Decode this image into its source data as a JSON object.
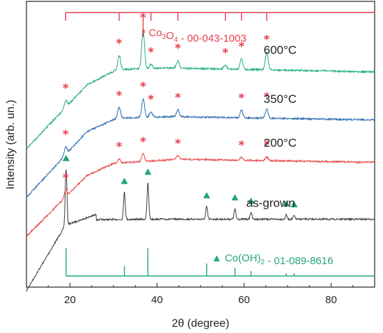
{
  "chart_data": {
    "type": "line",
    "xlabel": "2θ (degree)",
    "ylabel": "Intensity (arb. un.)",
    "xlim": [
      10,
      90
    ],
    "xticks": [
      "20",
      "40",
      "60",
      "80"
    ],
    "grid": false,
    "colors": {
      "as_grown": "#3a3a3a",
      "c200": "#e84a4a",
      "c350": "#2f6db3",
      "c600": "#1fae7a",
      "co3o4_ref": "#e83c4e",
      "cooh_ref": "#22a57a"
    },
    "series": [
      {
        "name": "as-grown",
        "peaks": [
          {
            "x": 19.1,
            "h": 80
          },
          {
            "x": 32.5,
            "h": 39
          },
          {
            "x": 37.9,
            "h": 52
          },
          {
            "x": 51.4,
            "h": 18
          },
          {
            "x": 57.9,
            "h": 15
          },
          {
            "x": 61.6,
            "h": 10
          },
          {
            "x": 69.7,
            "h": 6
          },
          {
            "x": 71.5,
            "h": 5
          }
        ],
        "marker": "triangle",
        "marker_positions": [
          19.1,
          32.5,
          37.9,
          51.4,
          57.9,
          61.6,
          69.7,
          71.5
        ]
      },
      {
        "name": "200°C",
        "peaks": [
          {
            "x": 19.0,
            "h": 10
          },
          {
            "x": 31.3,
            "h": 6
          },
          {
            "x": 36.8,
            "h": 11
          },
          {
            "x": 44.8,
            "h": 5
          },
          {
            "x": 59.4,
            "h": 4
          },
          {
            "x": 65.2,
            "h": 5
          }
        ],
        "marker": "star",
        "marker_positions": [
          19.0,
          31.3,
          36.8,
          44.8,
          59.4,
          65.2
        ]
      },
      {
        "name": "350°C",
        "peaks": [
          {
            "x": 19.0,
            "h": 12
          },
          {
            "x": 31.3,
            "h": 15
          },
          {
            "x": 36.8,
            "h": 27
          },
          {
            "x": 38.6,
            "h": 8
          },
          {
            "x": 44.8,
            "h": 9
          },
          {
            "x": 59.4,
            "h": 11
          },
          {
            "x": 65.2,
            "h": 13
          }
        ],
        "marker": "star",
        "marker_positions": [
          19.0,
          31.3,
          36.8,
          38.6,
          44.8,
          59.4,
          65.2
        ]
      },
      {
        "name": "600°C",
        "peaks": [
          {
            "x": 19.0,
            "h": 10
          },
          {
            "x": 31.3,
            "h": 20
          },
          {
            "x": 36.8,
            "h": 56
          },
          {
            "x": 38.6,
            "h": 6
          },
          {
            "x": 44.8,
            "h": 10
          },
          {
            "x": 55.7,
            "h": 6
          },
          {
            "x": 59.4,
            "h": 15
          },
          {
            "x": 65.2,
            "h": 26
          }
        ],
        "marker": "star",
        "marker_positions": [
          19.0,
          31.3,
          36.8,
          38.6,
          44.8,
          55.7,
          59.4,
          65.2
        ]
      }
    ],
    "reference_patterns": [
      {
        "name": "Co3O4 - 00-043-1003",
        "label_main": "Co",
        "label_sub1": "3",
        "label_mid": "O",
        "label_sub2": "4",
        "label_tail": " - 00-043-1003",
        "symbol": "*",
        "position": "top",
        "lines": [
          {
            "x": 19.0,
            "h": 12
          },
          {
            "x": 31.3,
            "h": 12
          },
          {
            "x": 36.8,
            "h": 35
          },
          {
            "x": 38.6,
            "h": 12
          },
          {
            "x": 44.8,
            "h": 12
          },
          {
            "x": 55.7,
            "h": 12
          },
          {
            "x": 59.4,
            "h": 12
          },
          {
            "x": 65.2,
            "h": 12
          }
        ]
      },
      {
        "name": "Co(OH)2 - 01-089-8616",
        "label_main": "Co(OH)",
        "label_sub1": "2",
        "label_tail": " - 01-089-8616",
        "symbol": "▲",
        "position": "bottom",
        "lines": [
          {
            "x": 19.1,
            "h": 40
          },
          {
            "x": 32.5,
            "h": 14
          },
          {
            "x": 37.9,
            "h": 40
          },
          {
            "x": 51.4,
            "h": 18
          },
          {
            "x": 57.9,
            "h": 12
          },
          {
            "x": 61.6,
            "h": 7
          },
          {
            "x": 69.7,
            "h": 4
          },
          {
            "x": 71.5,
            "h": 4
          }
        ]
      }
    ]
  }
}
